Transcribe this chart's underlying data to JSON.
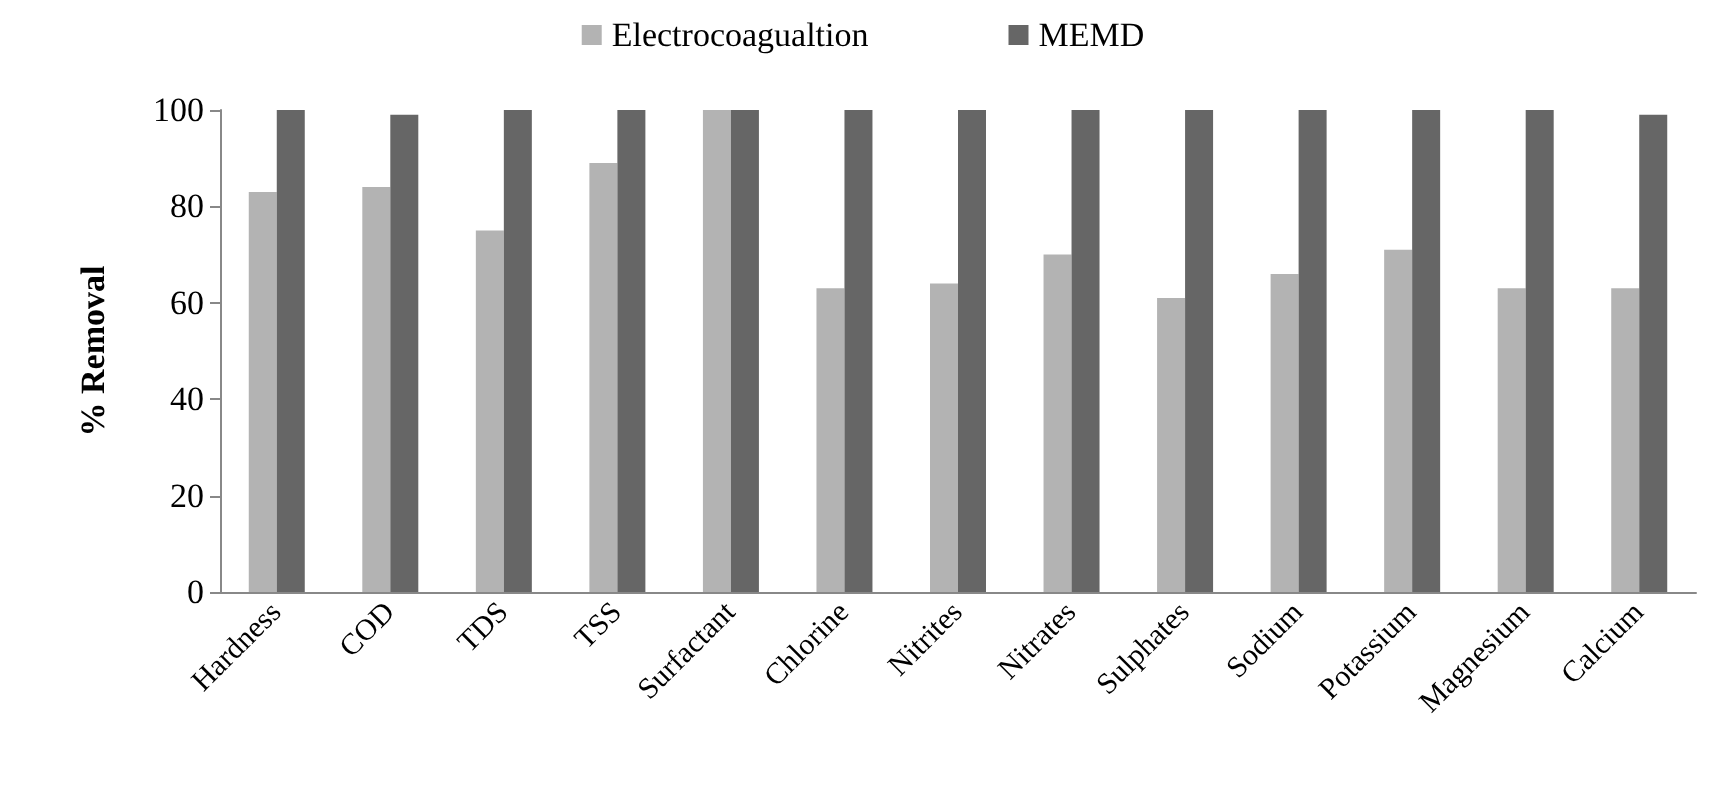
{
  "chart_data": {
    "type": "bar",
    "ylabel": "% Removal",
    "categories": [
      "Hardness",
      "COD",
      "TDS",
      "TSS",
      "Surfactant",
      "Chlorine",
      "Nitrites",
      "Nitrates",
      "Sulphates",
      "Sodium",
      "Potassium",
      "Magnesium",
      "Calcium"
    ],
    "series": [
      {
        "name": "Electrocoagualtion",
        "color": "#b3b3b3",
        "values": [
          83,
          84,
          75,
          89,
          100,
          63,
          64,
          70,
          61,
          66,
          71,
          63,
          63
        ]
      },
      {
        "name": "MEMD",
        "color": "#666666",
        "values": [
          100,
          99,
          100,
          100,
          100,
          100,
          100,
          100,
          100,
          100,
          100,
          100,
          99
        ]
      }
    ],
    "ylim": [
      0,
      100
    ],
    "yticks": [
      0,
      20,
      40,
      60,
      80,
      100
    ],
    "grid": false,
    "legend": "top"
  }
}
